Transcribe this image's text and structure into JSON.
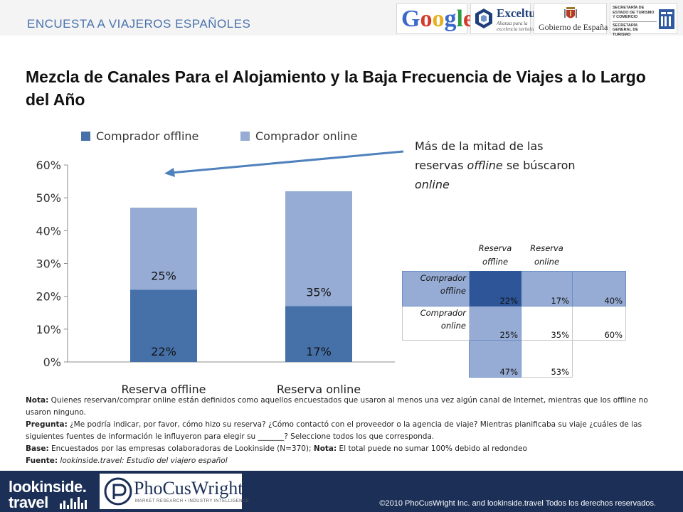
{
  "header": {
    "title": "ENCUESTA A VIAJEROS ESPAÑOLES",
    "logos": {
      "google": "Google",
      "exceltur": {
        "name": "Exceltur",
        "tagline": "Alianza para la excelencia turística"
      },
      "gobierno": "Gobierno de España",
      "secretaria": [
        "SECRETARÍA DE ESTADO DE TURISMO Y COMERCIO",
        "SECRETARÍA GENERAL DE TURISMO"
      ]
    }
  },
  "title": "Mezcla de Canales Para el Alojamiento y la Baja Frecuencia de Viajes a lo Largo del Año",
  "annotation": {
    "text_before": "Más de la mitad de las reservas ",
    "em1": "offline",
    "text_middle": " se búscaron ",
    "em2": "online"
  },
  "chart_data": {
    "type": "bar",
    "stacked": true,
    "categories": [
      "Reserva offline",
      "Reserva online"
    ],
    "series": [
      {
        "name": "Comprador offline",
        "values": [
          22,
          17
        ],
        "labels": [
          "22%",
          "17%"
        ],
        "color": "#4571a8"
      },
      {
        "name": "Comprador online",
        "values": [
          25,
          35
        ],
        "labels": [
          "25%",
          "35%"
        ],
        "color": "#96acd4"
      }
    ],
    "y_ticks": [
      "0%",
      "10%",
      "20%",
      "30%",
      "40%",
      "50%",
      "60%"
    ],
    "ylim": [
      0,
      60
    ],
    "legend_position": "top",
    "grid": false
  },
  "table": {
    "headers": [
      "Reserva offline",
      "Reserva online"
    ],
    "rows": [
      {
        "label": "Comprador offline",
        "values": [
          "22%",
          "17%",
          "40%"
        ]
      },
      {
        "label": "Comprador online",
        "values": [
          "25%",
          "35%",
          "60%"
        ]
      }
    ],
    "totals": [
      "47%",
      "53%"
    ]
  },
  "notes": {
    "nota_label": "Nota:",
    "nota_text": " Quienes reservan/comprar online están definidos como aquellos encuestados que usaron al menos una vez algún canal de Internet, mientras que los offline no usaron ninguno.",
    "pregunta_label": "Pregunta:",
    "pregunta_text": " ¿Me podría indicar, por favor, cómo hizo su reserva? ¿Cómo contactó con el proveedor o la agencia de viaje? Mientras planificaba su viaje ¿cuáles de las siguientes fuentes de información le influyeron para elegir su _______? Seleccione todos los que corresponda.",
    "base_label": "Base:",
    "base_text": " Encuestados por las empresas colaboradoras de Lookinside (N=370);",
    "nota2_label": "Nota:",
    "nota2_text": " El total puede no sumar 100% debido al redondeo",
    "fuente_label": "Fuente:",
    "fuente_text": " lookinside.travel: Estudio del viajero español"
  },
  "footer": {
    "logo_line1": "lookinside.",
    "logo_line2": "travel",
    "pcw_name": "PhoCusWright",
    "pcw_tagline": "MARKET RESEARCH • INDUSTRY INTELLIGENCE",
    "copyright": "©2010 PhoCusWright Inc. and lookinside.travel Todos los derechos reservados."
  },
  "colors": {
    "accent": "#4a72ad",
    "dark_bar": "#4571a8",
    "light_bar": "#96acd4",
    "footer": "#1c3057",
    "table_dark": "#2e5597"
  }
}
